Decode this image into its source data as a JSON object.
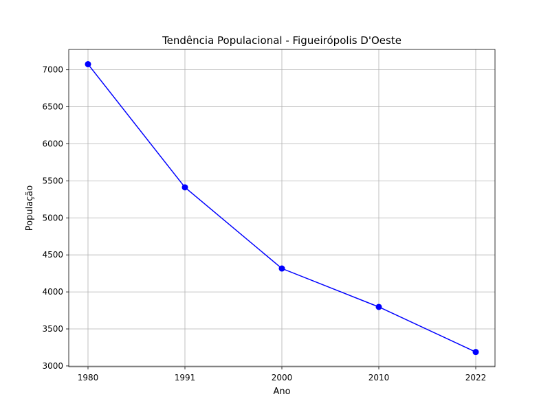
{
  "chart_data": {
    "type": "line",
    "title": "Tendência Populacional - Figueirópolis D'Oeste",
    "xlabel": "Ano",
    "ylabel": "População",
    "categories": [
      "1980",
      "1991",
      "2000",
      "2010",
      "2022"
    ],
    "series": [
      {
        "values": [
          7076,
          5412,
          4316,
          3797,
          3188
        ],
        "color": "#0000ff",
        "marker": "circle"
      }
    ],
    "ylim": [
      2990,
      7275
    ],
    "yticks": [
      3000,
      3500,
      4000,
      4500,
      5000,
      5500,
      6000,
      6500,
      7000
    ],
    "grid": true
  }
}
